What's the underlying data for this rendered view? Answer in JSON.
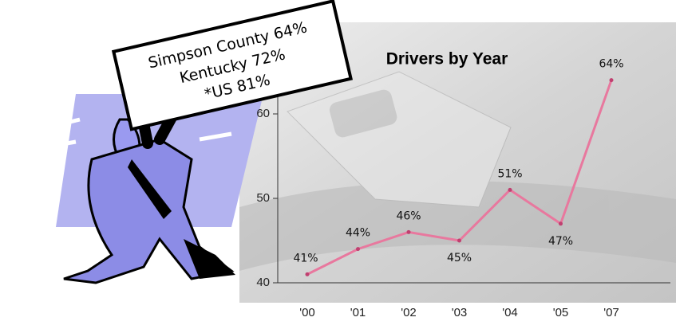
{
  "chart_data": {
    "type": "line",
    "title": "Drivers by Year",
    "annotations": [
      "Simpson County 64%",
      "Kentucky 72%",
      "*US 81%"
    ],
    "categories": [
      "'00",
      "'01",
      "'02",
      "'03",
      "'04",
      "'05",
      "'07"
    ],
    "series": [
      {
        "color": "#e8789e",
        "values": [
          41,
          44,
          46,
          45,
          51,
          47,
          64
        ],
        "value_labels": [
          "41%",
          "44%",
          "46%",
          "45%",
          "51%",
          "47%",
          "64%"
        ]
      }
    ],
    "ylim": [
      40,
      70
    ],
    "yticks": [
      40,
      50,
      60
    ]
  }
}
